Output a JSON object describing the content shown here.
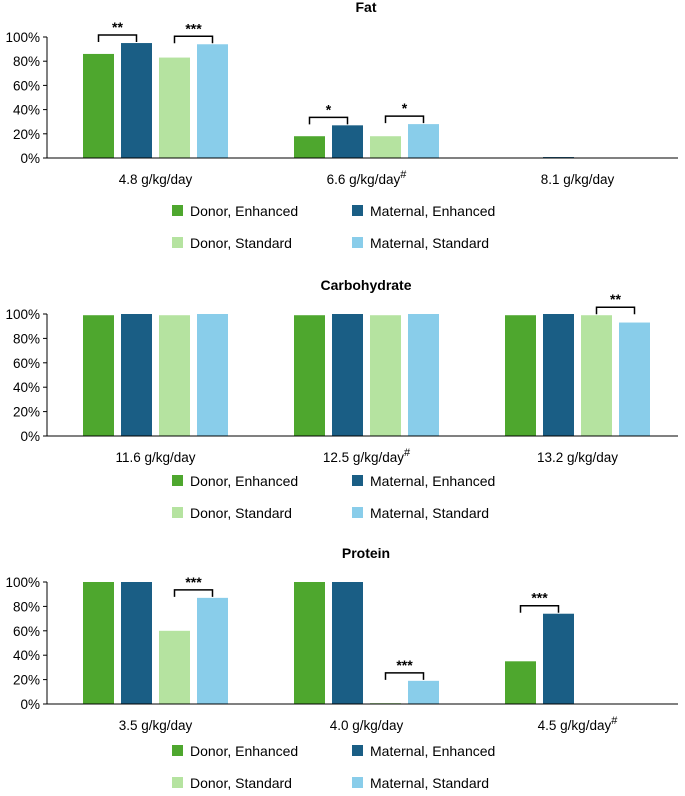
{
  "colors": {
    "donor_enhanced": "#4ea72e",
    "maternal_enhanced": "#1a5e85",
    "donor_standard": "#b5e3a0",
    "maternal_standard": "#89cdea"
  },
  "chart_data": [
    {
      "type": "bar",
      "title": "Fat",
      "ylim": [
        0,
        100
      ],
      "yticks": [
        "0%",
        "20%",
        "40%",
        "60%",
        "80%",
        "100%"
      ],
      "categories": [
        "4.8 g/kg/day",
        "6.6 g/kg/day",
        "8.1 g/kg/day"
      ],
      "category_marks": [
        "",
        "#",
        ""
      ],
      "series": [
        {
          "name": "Donor, Enhanced",
          "values": [
            86,
            18,
            0
          ]
        },
        {
          "name": "Maternal, Enhanced",
          "values": [
            95,
            27,
            0.8
          ]
        },
        {
          "name": "Donor, Standard",
          "values": [
            83,
            18,
            0
          ]
        },
        {
          "name": "Maternal, Standard",
          "values": [
            94,
            28,
            0
          ]
        }
      ],
      "significance": [
        {
          "category": 0,
          "pair": "enhanced",
          "label": "**"
        },
        {
          "category": 0,
          "pair": "standard",
          "label": "***"
        },
        {
          "category": 1,
          "pair": "enhanced",
          "label": "*"
        },
        {
          "category": 1,
          "pair": "standard",
          "label": "*"
        }
      ]
    },
    {
      "type": "bar",
      "title": "Carbohydrate",
      "ylim": [
        0,
        100
      ],
      "yticks": [
        "0%",
        "20%",
        "40%",
        "60%",
        "80%",
        "100%"
      ],
      "categories": [
        "11.6 g/kg/day",
        "12.5 g/kg/day",
        "13.2 g/kg/day"
      ],
      "category_marks": [
        "",
        "#",
        ""
      ],
      "series": [
        {
          "name": "Donor, Enhanced",
          "values": [
            99,
            99,
            99
          ]
        },
        {
          "name": "Maternal, Enhanced",
          "values": [
            100,
            100,
            100
          ]
        },
        {
          "name": "Donor, Standard",
          "values": [
            99,
            99,
            99
          ]
        },
        {
          "name": "Maternal, Standard",
          "values": [
            100,
            100,
            93
          ]
        }
      ],
      "significance": [
        {
          "category": 2,
          "pair": "standard",
          "label": "**"
        }
      ]
    },
    {
      "type": "bar",
      "title": "Protein",
      "ylim": [
        0,
        100
      ],
      "yticks": [
        "0%",
        "20%",
        "40%",
        "60%",
        "80%",
        "100%"
      ],
      "categories": [
        "3.5 g/kg/day",
        "4.0 g/kg/day",
        "4.5 g/kg/day"
      ],
      "category_marks": [
        "",
        "",
        "#"
      ],
      "series": [
        {
          "name": "Donor, Enhanced",
          "values": [
            100,
            100,
            35
          ]
        },
        {
          "name": "Maternal, Enhanced",
          "values": [
            100,
            100,
            74
          ]
        },
        {
          "name": "Donor, Standard",
          "values": [
            60,
            0.8,
            0
          ]
        },
        {
          "name": "Maternal, Standard",
          "values": [
            87,
            19,
            0
          ]
        }
      ],
      "significance": [
        {
          "category": 0,
          "pair": "standard",
          "label": "***"
        },
        {
          "category": 1,
          "pair": "standard",
          "label": "***"
        },
        {
          "category": 2,
          "pair": "enhanced",
          "label": "***"
        }
      ]
    }
  ]
}
